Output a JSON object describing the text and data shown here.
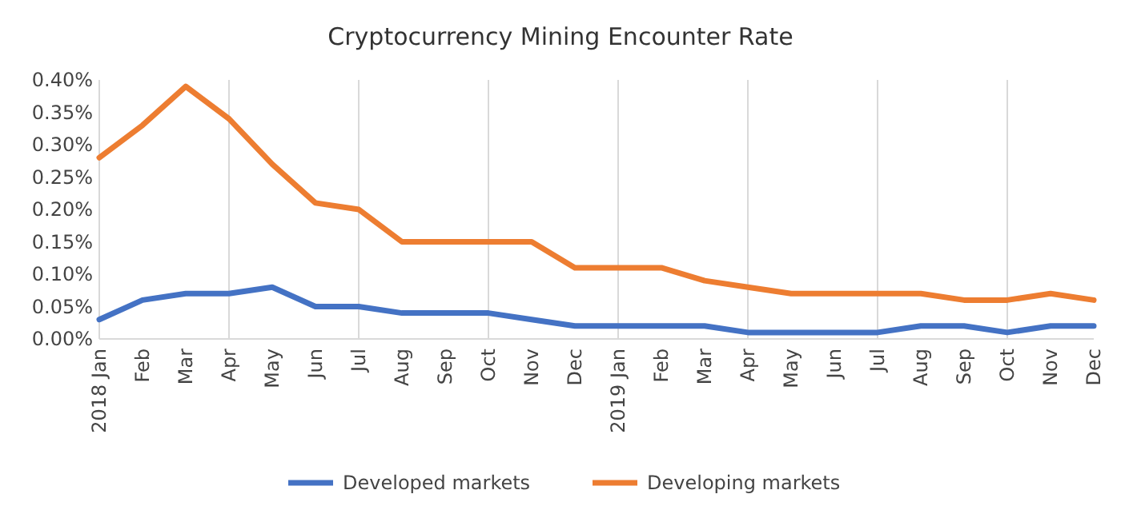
{
  "chart_data": {
    "type": "line",
    "title": "Cryptocurrency Mining Encounter Rate",
    "categories": [
      "2018 Jan",
      "Feb",
      "Mar",
      "Apr",
      "May",
      "Jun",
      "Jul",
      "Aug",
      "Sep",
      "Oct",
      "Nov",
      "Dec",
      "2019 Jan",
      "Feb",
      "Mar",
      "Apr",
      "May",
      "Jun",
      "Jul",
      "Aug",
      "Sep",
      "Oct",
      "Nov",
      "Dec"
    ],
    "series": [
      {
        "name": "Developed markets",
        "color": "#4472c4",
        "values": [
          0.03,
          0.06,
          0.07,
          0.07,
          0.08,
          0.05,
          0.05,
          0.04,
          0.04,
          0.04,
          0.03,
          0.02,
          0.02,
          0.02,
          0.02,
          0.01,
          0.01,
          0.01,
          0.01,
          0.02,
          0.02,
          0.01,
          0.02,
          0.02
        ]
      },
      {
        "name": "Developing markets",
        "color": "#ed7d31",
        "values": [
          0.28,
          0.33,
          0.39,
          0.34,
          0.27,
          0.21,
          0.2,
          0.15,
          0.15,
          0.15,
          0.15,
          0.11,
          0.11,
          0.11,
          0.09,
          0.08,
          0.07,
          0.07,
          0.07,
          0.07,
          0.06,
          0.06,
          0.07,
          0.06
        ]
      }
    ],
    "ylim": [
      0,
      0.4
    ],
    "yticks": [
      {
        "value": 0,
        "label": "0.00%"
      },
      {
        "value": 0.05,
        "label": "0.05%"
      },
      {
        "value": 0.1,
        "label": "0.10%"
      },
      {
        "value": 0.15,
        "label": "0.15%"
      },
      {
        "value": 0.2,
        "label": "0.20%"
      },
      {
        "value": 0.25,
        "label": "0.25%"
      },
      {
        "value": 0.3,
        "label": "0.30%"
      },
      {
        "value": 0.35,
        "label": "0.35%"
      },
      {
        "value": 0.4,
        "label": "0.40%"
      }
    ],
    "grid": "x",
    "legend": "bottom",
    "line_style": "solid"
  }
}
